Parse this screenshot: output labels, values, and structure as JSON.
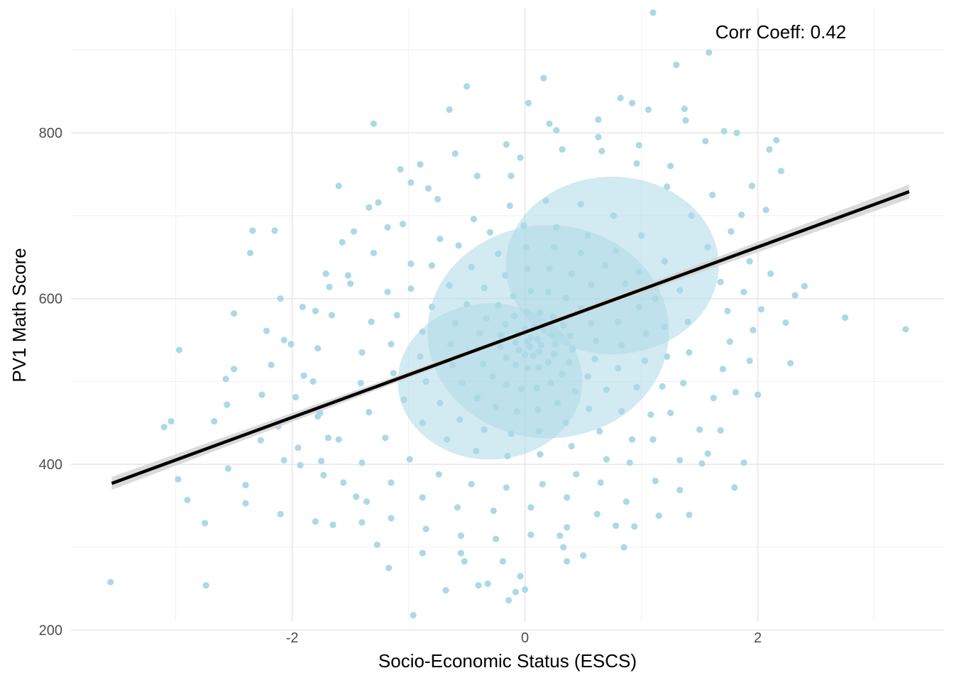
{
  "chart_data": {
    "type": "scatter",
    "title": "",
    "xlabel": "Socio-Economic Status (ESCS)",
    "ylabel": "PV1 Math Score",
    "xlim": [
      -3.9,
      3.6
    ],
    "ylim": [
      210,
      950
    ],
    "x_ticks": [
      -2,
      0,
      2
    ],
    "x_tick_labels": [
      "-2",
      "0",
      "2"
    ],
    "y_ticks": [
      200,
      400,
      600,
      800
    ],
    "y_tick_labels": [
      "200",
      "400",
      "600",
      "800"
    ],
    "x_minor_grid": [
      -3,
      -1,
      1,
      3
    ],
    "y_minor_grid": [
      300,
      500,
      700,
      900
    ],
    "grid": true,
    "legend": "none",
    "theme": "minimal",
    "point_color": "#ADD8E6",
    "line_color": "#000000",
    "ribbon_color": "#D3D3D3",
    "annotation": "Corr Coeff: 0.42",
    "annotation_position": {
      "x": 2.35,
      "y": 925
    },
    "fit_line": {
      "x_start": -3.55,
      "y_start": 377,
      "x_end": 3.3,
      "y_end": 729
    },
    "points": [
      [
        1.1,
        945
      ],
      [
        1.58,
        897
      ],
      [
        1.3,
        882
      ],
      [
        0.16,
        866
      ],
      [
        -0.5,
        856
      ],
      [
        0.82,
        842
      ],
      [
        0.03,
        836
      ],
      [
        -0.65,
        828
      ],
      [
        0.21,
        811
      ],
      [
        -1.3,
        811
      ],
      [
        1.38,
        815
      ],
      [
        1.82,
        800
      ],
      [
        2.1,
        780
      ],
      [
        2.16,
        791
      ],
      [
        2.2,
        754
      ],
      [
        -1.6,
        736
      ],
      [
        -2.34,
        682
      ],
      [
        -2.15,
        682
      ],
      [
        -2.36,
        655
      ],
      [
        -2.1,
        600
      ],
      [
        -2.5,
        582
      ],
      [
        -2.97,
        538
      ],
      [
        -3.1,
        445
      ],
      [
        -3.04,
        452
      ],
      [
        -2.67,
        452
      ],
      [
        -2.5,
        515
      ],
      [
        -2.57,
        503
      ],
      [
        -2.56,
        472
      ],
      [
        -3.56,
        258
      ],
      [
        -2.74,
        254
      ],
      [
        -2.75,
        329
      ],
      [
        -2.9,
        357
      ],
      [
        -2.98,
        382
      ],
      [
        -2.55,
        395
      ],
      [
        -1.93,
        399
      ],
      [
        -2.4,
        375
      ],
      [
        -2.4,
        353
      ],
      [
        -2.1,
        340
      ],
      [
        -1.8,
        331
      ],
      [
        -1.65,
        327
      ],
      [
        -0.96,
        218
      ],
      [
        -0.14,
        236
      ],
      [
        -0.08,
        246
      ],
      [
        0.0,
        249
      ],
      [
        -0.68,
        248
      ],
      [
        -0.4,
        254
      ],
      [
        -0.32,
        256
      ],
      [
        -0.04,
        265
      ],
      [
        -1.17,
        275
      ],
      [
        -0.52,
        283
      ],
      [
        0.33,
        300
      ],
      [
        0.85,
        300
      ],
      [
        0.3,
        314
      ],
      [
        0.78,
        326
      ],
      [
        1.41,
        339
      ],
      [
        1.8,
        372
      ],
      [
        1.88,
        402
      ],
      [
        1.57,
        413
      ],
      [
        2.75,
        577
      ],
      [
        3.27,
        563
      ],
      [
        2.24,
        571
      ],
      [
        2.28,
        522
      ],
      [
        2.0,
        484
      ],
      [
        2.4,
        615
      ],
      [
        2.32,
        604
      ],
      [
        2.03,
        587
      ],
      [
        2.11,
        630
      ],
      [
        2.07,
        707
      ],
      [
        1.86,
        701
      ],
      [
        1.95,
        736
      ],
      [
        1.71,
        802
      ],
      [
        1.55,
        790
      ],
      [
        1.37,
        829
      ],
      [
        0.92,
        836
      ],
      [
        0.63,
        795
      ],
      [
        1.06,
        828
      ],
      [
        -0.12,
        748
      ],
      [
        -1.26,
        716
      ],
      [
        -1.07,
        756
      ],
      [
        -0.9,
        762
      ],
      [
        -0.83,
        733
      ],
      [
        -1.18,
        686
      ],
      [
        -1.47,
        681
      ],
      [
        -1.52,
        628
      ],
      [
        -1.68,
        614
      ],
      [
        -1.8,
        585
      ],
      [
        -2.22,
        561
      ],
      [
        -2.01,
        545
      ],
      [
        -1.9,
        507
      ],
      [
        -1.97,
        481
      ],
      [
        -1.78,
        458
      ],
      [
        -1.69,
        432
      ],
      [
        -2.27,
        429
      ],
      [
        -2.07,
        405
      ],
      [
        -1.73,
        387
      ],
      [
        -1.45,
        361
      ],
      [
        -1.4,
        330
      ],
      [
        -1.27,
        303
      ],
      [
        -0.88,
        293
      ],
      [
        -0.55,
        293
      ],
      [
        -0.19,
        283
      ],
      [
        0.36,
        283
      ],
      [
        0.5,
        290
      ],
      [
        0.94,
        325
      ],
      [
        1.15,
        338
      ],
      [
        1.33,
        369
      ],
      [
        1.52,
        401
      ],
      [
        1.68,
        441
      ],
      [
        1.81,
        487
      ],
      [
        1.93,
        525
      ],
      [
        1.96,
        562
      ],
      [
        1.88,
        608
      ],
      [
        1.93,
        645
      ],
      [
        1.77,
        681
      ],
      [
        1.61,
        725
      ],
      [
        1.25,
        760
      ],
      [
        0.98,
        785
      ],
      [
        0.63,
        816
      ],
      [
        0.27,
        803
      ],
      [
        -0.16,
        786
      ],
      [
        -0.6,
        775
      ],
      [
        -0.98,
        740
      ],
      [
        -1.34,
        710
      ],
      [
        -1.57,
        668
      ],
      [
        -1.71,
        630
      ],
      [
        -1.91,
        590
      ],
      [
        -2.07,
        550
      ],
      [
        -2.18,
        520
      ],
      [
        -2.26,
        484
      ],
      [
        -2.12,
        446
      ],
      [
        -1.95,
        420
      ],
      [
        -1.75,
        404
      ],
      [
        -1.56,
        378
      ],
      [
        -1.36,
        355
      ],
      [
        -1.15,
        335
      ],
      [
        -0.85,
        322
      ],
      [
        -0.55,
        314
      ],
      [
        -0.25,
        310
      ],
      [
        0.05,
        315
      ],
      [
        0.36,
        324
      ],
      [
        0.62,
        340
      ],
      [
        0.87,
        355
      ],
      [
        1.12,
        380
      ],
      [
        1.33,
        405
      ],
      [
        1.5,
        442
      ],
      [
        1.62,
        480
      ],
      [
        1.7,
        515
      ],
      [
        1.76,
        548
      ],
      [
        1.74,
        585
      ],
      [
        1.68,
        620
      ],
      [
        1.57,
        662
      ],
      [
        1.43,
        700
      ],
      [
        1.22,
        735
      ],
      [
        0.96,
        763
      ],
      [
        0.66,
        778
      ],
      [
        0.32,
        780
      ],
      [
        -0.04,
        770
      ],
      [
        -0.41,
        748
      ],
      [
        -0.75,
        720
      ],
      [
        -1.05,
        690
      ],
      [
        -1.3,
        655
      ],
      [
        -1.5,
        618
      ],
      [
        -1.66,
        580
      ],
      [
        -1.78,
        540
      ],
      [
        -1.82,
        500
      ],
      [
        -1.76,
        462
      ],
      [
        -1.6,
        430
      ],
      [
        -1.4,
        402
      ],
      [
        -1.15,
        378
      ],
      [
        -0.88,
        360
      ],
      [
        -0.58,
        348
      ],
      [
        -0.27,
        344
      ],
      [
        0.05,
        348
      ],
      [
        0.36,
        360
      ],
      [
        0.65,
        378
      ],
      [
        0.9,
        402
      ],
      [
        1.1,
        430
      ],
      [
        1.25,
        462
      ],
      [
        1.36,
        498
      ],
      [
        1.41,
        535
      ],
      [
        1.4,
        572
      ],
      [
        1.33,
        610
      ],
      [
        1.2,
        645
      ],
      [
        1.0,
        676
      ],
      [
        0.76,
        700
      ],
      [
        0.48,
        714
      ],
      [
        0.18,
        718
      ],
      [
        -0.13,
        712
      ],
      [
        -0.44,
        696
      ],
      [
        -0.73,
        672
      ],
      [
        -0.98,
        642
      ],
      [
        -1.18,
        608
      ],
      [
        -1.32,
        572
      ],
      [
        -1.4,
        535
      ],
      [
        -1.41,
        498
      ],
      [
        -1.34,
        463
      ],
      [
        -1.2,
        432
      ],
      [
        -0.99,
        406
      ],
      [
        -0.74,
        388
      ],
      [
        -0.46,
        376
      ],
      [
        -0.16,
        372
      ],
      [
        0.15,
        376
      ],
      [
        0.44,
        388
      ],
      [
        0.7,
        406
      ],
      [
        0.92,
        430
      ],
      [
        1.08,
        460
      ],
      [
        1.18,
        494
      ],
      [
        1.22,
        530
      ],
      [
        1.2,
        566
      ],
      [
        1.12,
        600
      ],
      [
        0.98,
        632
      ],
      [
        0.78,
        658
      ],
      [
        0.54,
        676
      ],
      [
        0.27,
        686
      ],
      [
        -0.01,
        688
      ],
      [
        -0.3,
        680
      ],
      [
        -0.57,
        664
      ],
      [
        -0.8,
        640
      ],
      [
        -0.98,
        612
      ],
      [
        -1.1,
        580
      ],
      [
        -1.15,
        545
      ],
      [
        -1.13,
        510
      ],
      [
        -1.04,
        478
      ],
      [
        -0.88,
        450
      ],
      [
        -0.67,
        430
      ],
      [
        -0.42,
        416
      ],
      [
        -0.15,
        410
      ],
      [
        0.13,
        412
      ],
      [
        0.4,
        422
      ],
      [
        0.64,
        440
      ],
      [
        0.83,
        464
      ],
      [
        0.96,
        493
      ],
      [
        1.03,
        525
      ],
      [
        1.04,
        558
      ],
      [
        0.98,
        590
      ],
      [
        0.86,
        618
      ],
      [
        0.69,
        640
      ],
      [
        0.48,
        655
      ],
      [
        0.25,
        662
      ],
      [
        0.01,
        662
      ],
      [
        -0.23,
        654
      ],
      [
        -0.46,
        638
      ],
      [
        -0.65,
        616
      ],
      [
        -0.8,
        590
      ],
      [
        -0.88,
        560
      ],
      [
        -0.9,
        530
      ],
      [
        -0.85,
        500
      ],
      [
        -0.73,
        474
      ],
      [
        -0.56,
        454
      ],
      [
        -0.35,
        442
      ],
      [
        -0.12,
        437
      ],
      [
        0.12,
        440
      ],
      [
        0.35,
        450
      ],
      [
        0.55,
        467
      ],
      [
        0.7,
        490
      ],
      [
        0.8,
        516
      ],
      [
        0.83,
        544
      ],
      [
        0.8,
        572
      ],
      [
        0.71,
        597
      ],
      [
        0.57,
        617
      ],
      [
        0.4,
        630
      ],
      [
        0.21,
        636
      ],
      [
        0.02,
        636
      ],
      [
        -0.17,
        628
      ],
      [
        -0.35,
        613
      ],
      [
        -0.5,
        593
      ],
      [
        -0.6,
        570
      ],
      [
        -0.64,
        545
      ],
      [
        -0.62,
        520
      ],
      [
        -0.54,
        498
      ],
      [
        -0.41,
        480
      ],
      [
        -0.25,
        469
      ],
      [
        -0.07,
        464
      ],
      [
        0.11,
        466
      ],
      [
        0.28,
        474
      ],
      [
        0.43,
        488
      ],
      [
        0.54,
        506
      ],
      [
        0.6,
        527
      ],
      [
        0.61,
        549
      ],
      [
        0.57,
        570
      ],
      [
        0.48,
        588
      ],
      [
        0.35,
        601
      ],
      [
        0.2,
        608
      ],
      [
        0.05,
        609
      ],
      [
        -0.1,
        603
      ],
      [
        -0.23,
        592
      ],
      [
        -0.33,
        576
      ],
      [
        -0.39,
        558
      ],
      [
        -0.4,
        539
      ],
      [
        -0.36,
        521
      ],
      [
        -0.28,
        506
      ],
      [
        -0.16,
        496
      ],
      [
        -0.03,
        491
      ],
      [
        0.1,
        492
      ],
      [
        0.22,
        498
      ],
      [
        0.32,
        509
      ],
      [
        0.38,
        523
      ],
      [
        0.41,
        539
      ],
      [
        0.39,
        555
      ],
      [
        0.33,
        568
      ],
      [
        0.24,
        578
      ],
      [
        0.13,
        583
      ],
      [
        0.02,
        584
      ],
      [
        -0.09,
        579
      ],
      [
        -0.17,
        569
      ],
      [
        -0.21,
        556
      ],
      [
        -0.21,
        542
      ],
      [
        -0.16,
        529
      ],
      [
        -0.08,
        520
      ],
      [
        0.02,
        516
      ],
      [
        0.12,
        517
      ],
      [
        0.2,
        523
      ],
      [
        0.25,
        533
      ],
      [
        0.26,
        545
      ],
      [
        0.23,
        556
      ],
      [
        0.16,
        563
      ],
      [
        0.08,
        566
      ],
      [
        0.0,
        564
      ],
      [
        -0.06,
        557
      ],
      [
        -0.08,
        547
      ],
      [
        -0.05,
        538
      ],
      [
        0.0,
        532
      ],
      [
        0.07,
        531
      ],
      [
        0.12,
        536
      ],
      [
        0.14,
        544
      ],
      [
        0.11,
        551
      ],
      [
        0.05,
        553
      ],
      [
        0.02,
        548
      ],
      [
        0.04,
        542
      ]
    ]
  }
}
